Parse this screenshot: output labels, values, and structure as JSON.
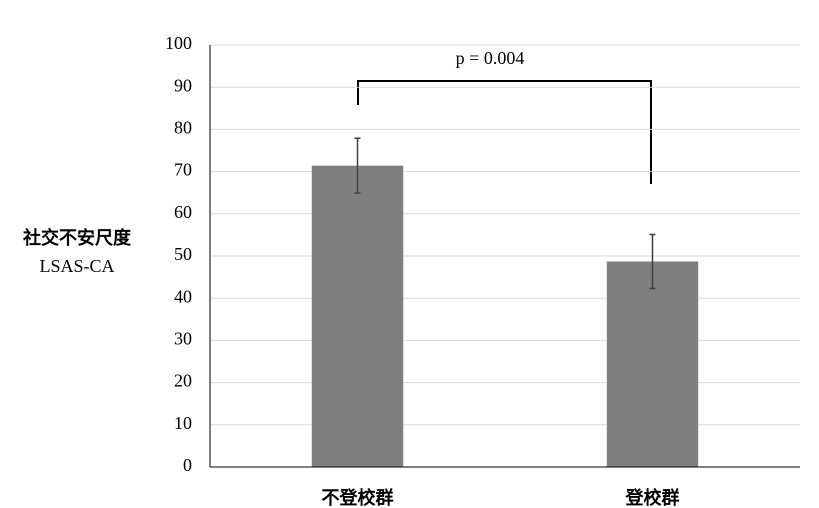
{
  "chart_data": {
    "type": "bar",
    "ylabel": [
      "社交不安尺度",
      "LSAS-CA"
    ],
    "categories": [
      "不登校群",
      "登校群"
    ],
    "values": [
      71.4,
      48.7
    ],
    "errors": [
      6.5,
      6.4
    ],
    "color": "#7f7f7f",
    "ylim": [
      0,
      100
    ],
    "yticks": [
      0,
      10,
      20,
      30,
      40,
      50,
      60,
      70,
      80,
      90,
      100
    ],
    "grid": true,
    "annotation": "p = 0.004"
  }
}
